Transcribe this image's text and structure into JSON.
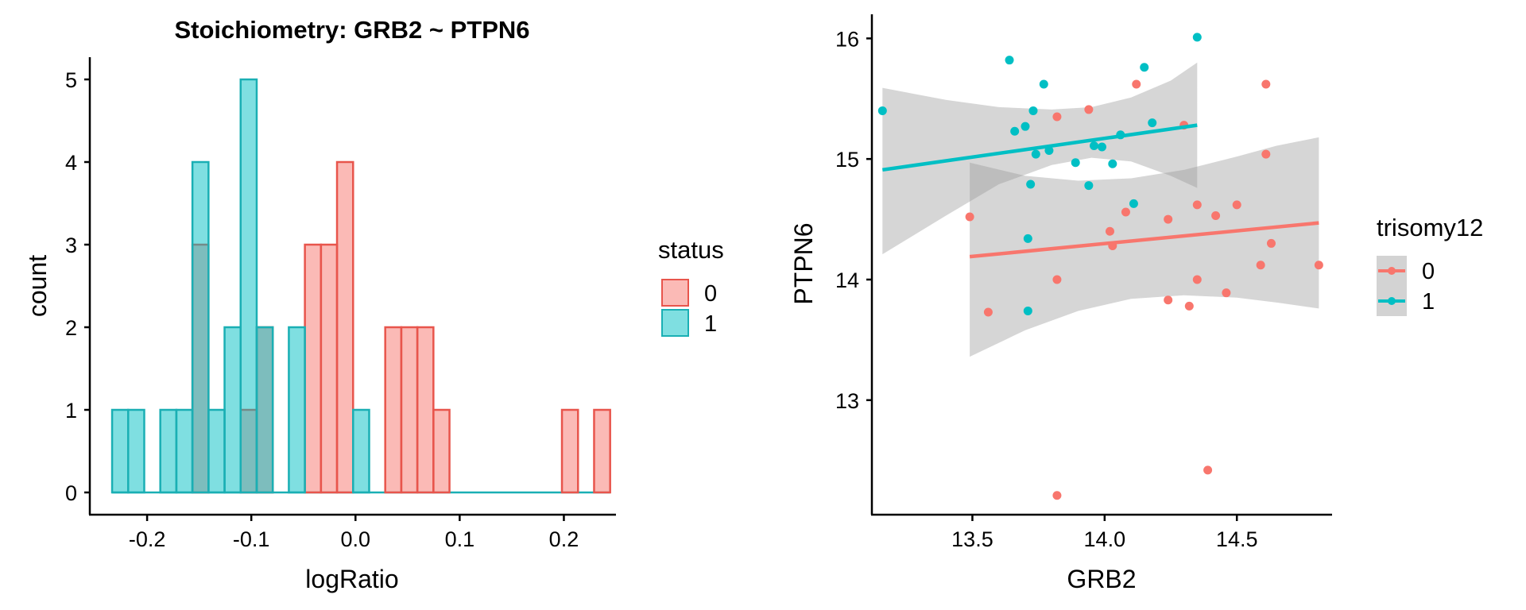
{
  "chart_data": [
    {
      "type": "histogram",
      "title": "Stoichiometry: GRB2 ~ PTPN6",
      "xlabel": "logRatio",
      "ylabel": "count",
      "xlim": [
        -0.255,
        0.25
      ],
      "ylim": [
        0,
        5.25
      ],
      "xticks": [
        -0.2,
        -0.1,
        0.0,
        0.1,
        0.2
      ],
      "xtick_labels": [
        "-0.2",
        "-0.1",
        "0.0",
        "0.1",
        "0.2"
      ],
      "yticks": [
        0,
        1,
        2,
        3,
        4,
        5
      ],
      "ytick_labels": [
        "0",
        "1",
        "2",
        "3",
        "4",
        "5"
      ],
      "bin_start": -0.2336,
      "bin_width": 0.01542,
      "legend": {
        "title": "status",
        "position": "right"
      },
      "series": [
        {
          "name": "0",
          "fill": "#F8766D",
          "stroke": "#E8554C",
          "counts": [
            0,
            0,
            0,
            0,
            0,
            3,
            0,
            0,
            1,
            2,
            0,
            0,
            3,
            3,
            4,
            0,
            0,
            2,
            2,
            2,
            1,
            0,
            0,
            0,
            0,
            0,
            0,
            0,
            1,
            0,
            1
          ]
        },
        {
          "name": "1",
          "fill": "#00BFC4",
          "stroke": "#1AAFB4",
          "counts": [
            1,
            1,
            0,
            1,
            1,
            4,
            1,
            2,
            5,
            2,
            0,
            2,
            0,
            0,
            0,
            1,
            0,
            0,
            0,
            0,
            0,
            0,
            0,
            0,
            0,
            0,
            0,
            0,
            0,
            0,
            0
          ]
        }
      ]
    },
    {
      "type": "scatter",
      "xlabel": "GRB2",
      "ylabel": "PTPN6",
      "xlim": [
        13.12,
        14.86
      ],
      "ylim": [
        12.05,
        16.2
      ],
      "xticks": [
        13.5,
        14.0,
        14.5
      ],
      "xtick_labels": [
        "13.5",
        "14.0",
        "14.5"
      ],
      "yticks": [
        13,
        14,
        15,
        16
      ],
      "ytick_labels": [
        "13",
        "14",
        "15",
        "16"
      ],
      "legend": {
        "title": "trisomy12",
        "position": "right"
      },
      "series": [
        {
          "name": "0",
          "color": "#F8766D",
          "points": [
            [
              13.49,
              14.52
            ],
            [
              13.56,
              13.73
            ],
            [
              13.82,
              15.35
            ],
            [
              13.82,
              14.0
            ],
            [
              13.82,
              12.21
            ],
            [
              13.94,
              15.41
            ],
            [
              14.02,
              14.4
            ],
            [
              14.03,
              14.28
            ],
            [
              14.08,
              14.56
            ],
            [
              14.12,
              15.62
            ],
            [
              14.24,
              14.5
            ],
            [
              14.24,
              13.83
            ],
            [
              14.3,
              15.28
            ],
            [
              14.32,
              13.78
            ],
            [
              14.35,
              14.62
            ],
            [
              14.35,
              14.0
            ],
            [
              14.39,
              12.42
            ],
            [
              14.42,
              14.53
            ],
            [
              14.46,
              13.89
            ],
            [
              14.5,
              14.62
            ],
            [
              14.59,
              14.12
            ],
            [
              14.61,
              15.62
            ],
            [
              14.61,
              15.04
            ],
            [
              14.63,
              14.3
            ],
            [
              14.81,
              14.12
            ]
          ],
          "fit": {
            "x": [
              13.49,
              14.81
            ],
            "y": [
              14.19,
              14.47
            ]
          },
          "ci_upper": [
            [
              13.49,
              14.97
            ],
            [
              13.7,
              14.86
            ],
            [
              13.9,
              14.82
            ],
            [
              14.1,
              14.84
            ],
            [
              14.3,
              14.91
            ],
            [
              14.5,
              15.02
            ],
            [
              14.65,
              15.11
            ],
            [
              14.81,
              15.18
            ]
          ],
          "ci_lower": [
            [
              13.49,
              13.36
            ],
            [
              13.7,
              13.58
            ],
            [
              13.9,
              13.74
            ],
            [
              14.1,
              13.84
            ],
            [
              14.3,
              13.87
            ],
            [
              14.5,
              13.85
            ],
            [
              14.65,
              13.81
            ],
            [
              14.81,
              13.76
            ]
          ]
        },
        {
          "name": "1",
          "color": "#00BFC4",
          "points": [
            [
              13.16,
              15.4
            ],
            [
              13.64,
              15.82
            ],
            [
              13.66,
              15.23
            ],
            [
              13.7,
              15.27
            ],
            [
              13.71,
              14.34
            ],
            [
              13.71,
              13.74
            ],
            [
              13.72,
              14.79
            ],
            [
              13.73,
              15.4
            ],
            [
              13.74,
              15.04
            ],
            [
              13.77,
              15.62
            ],
            [
              13.79,
              15.07
            ],
            [
              13.89,
              14.97
            ],
            [
              13.94,
              14.78
            ],
            [
              13.96,
              15.11
            ],
            [
              13.99,
              15.1
            ],
            [
              14.03,
              14.96
            ],
            [
              14.06,
              15.2
            ],
            [
              14.11,
              14.63
            ],
            [
              14.15,
              15.76
            ],
            [
              14.18,
              15.3
            ],
            [
              14.35,
              16.01
            ]
          ],
          "fit": {
            "x": [
              13.16,
              14.35
            ],
            "y": [
              14.91,
              15.28
            ]
          },
          "ci_upper": [
            [
              13.16,
              15.59
            ],
            [
              13.4,
              15.49
            ],
            [
              13.6,
              15.43
            ],
            [
              13.8,
              15.41
            ],
            [
              13.95,
              15.43
            ],
            [
              14.1,
              15.51
            ],
            [
              14.25,
              15.65
            ],
            [
              14.35,
              15.8
            ]
          ],
          "ci_lower": [
            [
              13.16,
              14.21
            ],
            [
              13.4,
              14.53
            ],
            [
              13.6,
              14.79
            ],
            [
              13.8,
              14.95
            ],
            [
              13.95,
              15.01
            ],
            [
              14.1,
              14.98
            ],
            [
              14.25,
              14.86
            ],
            [
              14.35,
              14.76
            ]
          ]
        }
      ]
    }
  ]
}
